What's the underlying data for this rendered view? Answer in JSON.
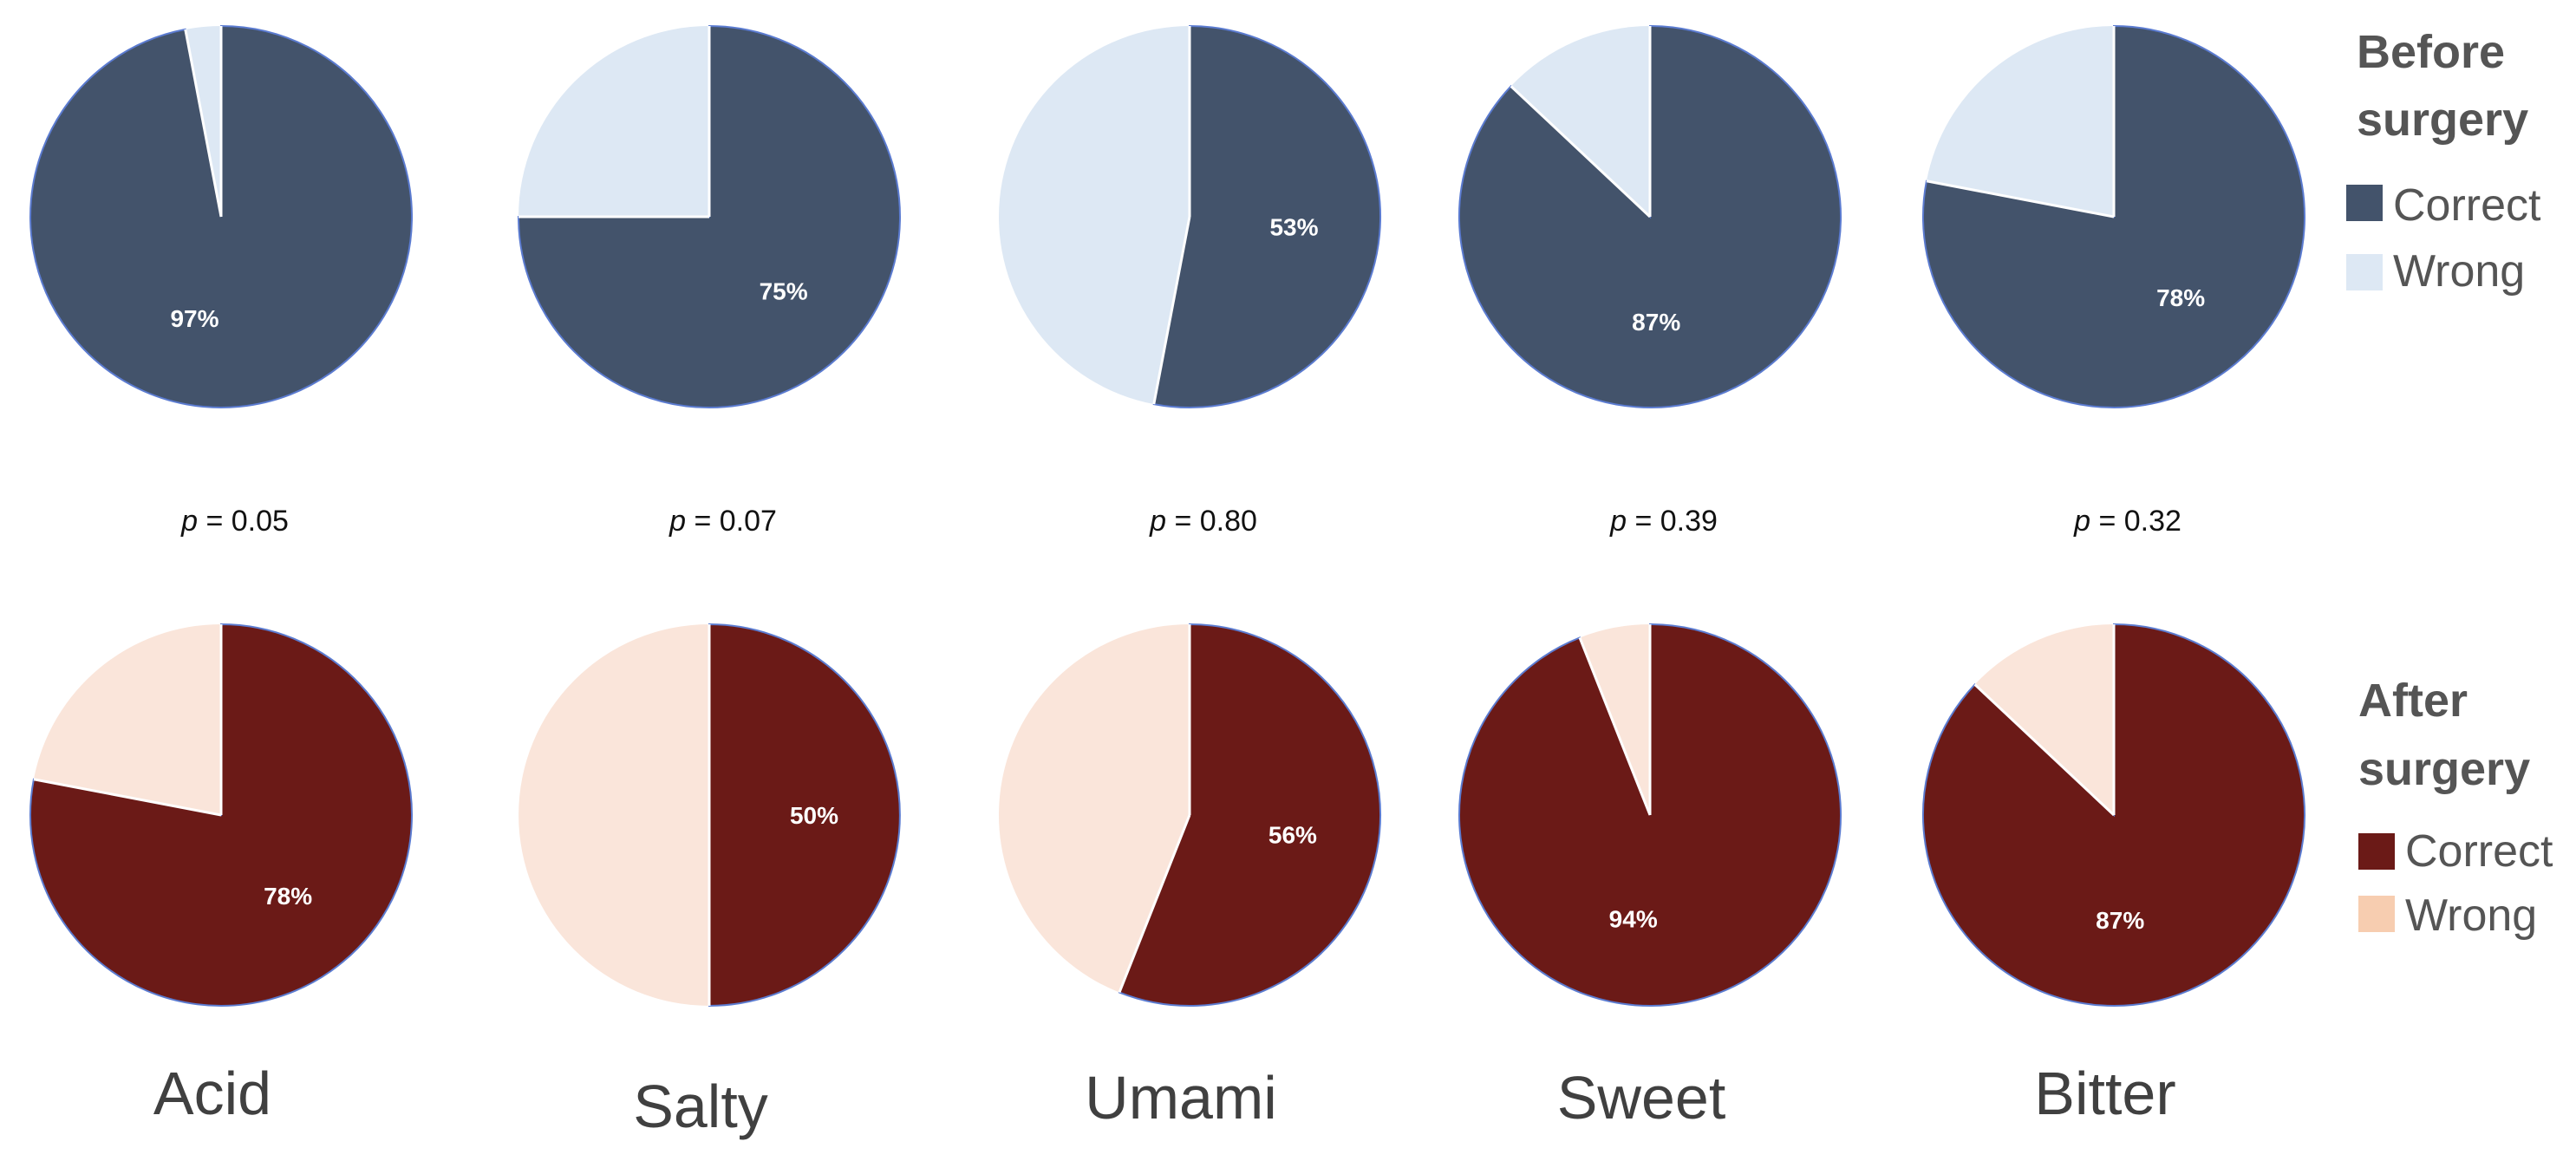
{
  "chart_data": {
    "type": "pie",
    "categories": [
      "Acid",
      "Salty",
      "Umami",
      "Sweet",
      "Bitter"
    ],
    "groups": [
      {
        "key": "before",
        "title_line1": "Before",
        "title_line2": "surgery",
        "legend": [
          "Correct",
          "Wrong"
        ],
        "colors": {
          "correct": "#43536b",
          "wrong": "#dde8f4"
        },
        "correct_percent": [
          97,
          75,
          53,
          87,
          78
        ],
        "percent_labels": [
          "97%",
          "75%",
          "53%",
          "87%",
          "78%"
        ]
      },
      {
        "key": "after",
        "title_line1": "After",
        "title_line2": "surgery",
        "legend": [
          "Correct",
          "Wrong"
        ],
        "colors": {
          "correct": "#6b1a17",
          "wrong": "#fae5da"
        },
        "correct_percent": [
          78,
          50,
          56,
          94,
          87
        ],
        "percent_labels": [
          "78%",
          "50%",
          "56%",
          "94%",
          "87%"
        ]
      }
    ],
    "p_values": [
      {
        "symbol": "p",
        "text": " = 0.05"
      },
      {
        "symbol": "p",
        "text": " = 0.07"
      },
      {
        "symbol": "p",
        "text": " = 0.80"
      },
      {
        "symbol": "p",
        "text": " = 0.39"
      },
      {
        "symbol": "p",
        "text": " = 0.32"
      }
    ]
  }
}
